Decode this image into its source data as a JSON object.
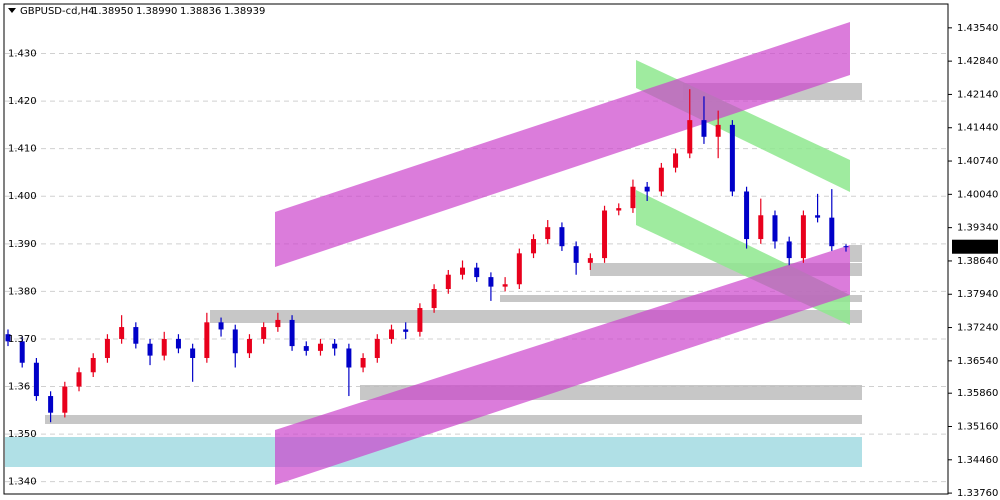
{
  "chart_data": {
    "type": "candlestick",
    "header": {
      "symbol": "GBPUSD-cd,H4",
      "open": "1.38950",
      "high": "1.38990",
      "low": "1.38836",
      "close": "1.38939"
    },
    "current_price": {
      "value": 1.38939,
      "label": "1.38939"
    },
    "up_color": "#e8001c",
    "down_color": "#0000c8",
    "grid": true,
    "ylim": [
      1.3372,
      1.4402
    ],
    "yticks": [
      {
        "value": 1.43,
        "label": "1.430"
      },
      {
        "value": 1.42,
        "label": "1.420"
      },
      {
        "value": 1.41,
        "label": "1.410"
      },
      {
        "value": 1.4,
        "label": "1.400"
      },
      {
        "value": 1.39,
        "label": "1.390"
      },
      {
        "value": 1.38,
        "label": "1.380"
      },
      {
        "value": 1.37,
        "label": "1.370"
      },
      {
        "value": 1.36,
        "label": "1.36"
      },
      {
        "value": 1.35,
        "label": "1.350"
      },
      {
        "value": 1.34,
        "label": "1.340"
      }
    ],
    "y2lim": [
      1.3372,
      1.4402
    ],
    "y2ticks": [
      {
        "value": 1.4354,
        "label": "1.43540"
      },
      {
        "value": 1.4284,
        "label": "1.42840"
      },
      {
        "value": 1.4214,
        "label": "1.42140"
      },
      {
        "value": 1.4144,
        "label": "1.41440"
      },
      {
        "value": 1.4074,
        "label": "1.40740"
      },
      {
        "value": 1.4004,
        "label": "1.40040"
      },
      {
        "value": 1.3934,
        "label": "1.39340"
      },
      {
        "value": 1.3864,
        "label": "1.38640"
      },
      {
        "value": 1.3794,
        "label": "1.37940"
      },
      {
        "value": 1.3724,
        "label": "1.37240"
      },
      {
        "value": 1.3654,
        "label": "1.36540"
      },
      {
        "value": 1.3586,
        "label": "1.35860"
      },
      {
        "value": 1.3516,
        "label": "1.35160"
      },
      {
        "value": 1.3446,
        "label": "1.34460"
      },
      {
        "value": 1.3376,
        "label": "1.33760"
      }
    ],
    "open": [
      1.371,
      1.3695,
      1.365,
      1.358,
      1.3545,
      1.36,
      1.363,
      1.366,
      1.37,
      1.3725,
      1.369,
      1.3665,
      1.37,
      1.368,
      1.366,
      1.3735,
      1.372,
      1.367,
      1.37,
      1.3725,
      1.374,
      1.3685,
      1.3675,
      1.369,
      1.368,
      1.364,
      1.366,
      1.37,
      1.372,
      1.3715,
      1.3765,
      1.3805,
      1.3835,
      1.385,
      1.383,
      1.381,
      1.3815,
      1.388,
      1.391,
      1.3935,
      1.3895,
      1.386,
      1.387,
      1.397,
      1.3975,
      1.402,
      1.401,
      1.406,
      1.409,
      1.416,
      1.4125,
      1.415,
      1.401,
      1.391,
      1.396,
      1.3905,
      1.387,
      1.396,
      1.3955,
      1.3895
    ],
    "high": [
      1.372,
      1.3705,
      1.366,
      1.359,
      1.361,
      1.364,
      1.367,
      1.371,
      1.375,
      1.3735,
      1.37,
      1.3715,
      1.371,
      1.369,
      1.3755,
      1.3745,
      1.373,
      1.371,
      1.3735,
      1.3755,
      1.375,
      1.3695,
      1.37,
      1.37,
      1.369,
      1.367,
      1.371,
      1.373,
      1.3735,
      1.3775,
      1.3815,
      1.3845,
      1.3865,
      1.386,
      1.384,
      1.383,
      1.389,
      1.392,
      1.395,
      1.3945,
      1.3905,
      1.388,
      1.398,
      1.3985,
      1.4035,
      1.403,
      1.407,
      1.41,
      1.4225,
      1.421,
      1.418,
      1.416,
      1.402,
      1.3995,
      1.397,
      1.3915,
      1.397,
      1.4005,
      1.4015,
      1.3899
    ],
    "low": [
      1.3685,
      1.364,
      1.357,
      1.3525,
      1.3535,
      1.359,
      1.362,
      1.365,
      1.369,
      1.368,
      1.3645,
      1.3655,
      1.367,
      1.361,
      1.365,
      1.3705,
      1.364,
      1.366,
      1.369,
      1.3715,
      1.3675,
      1.3665,
      1.3665,
      1.3665,
      1.358,
      1.363,
      1.365,
      1.369,
      1.37,
      1.3705,
      1.3755,
      1.3795,
      1.3825,
      1.382,
      1.378,
      1.38,
      1.3805,
      1.387,
      1.39,
      1.3885,
      1.3835,
      1.3845,
      1.386,
      1.396,
      1.3965,
      1.399,
      1.4,
      1.405,
      1.408,
      1.411,
      1.408,
      1.4,
      1.389,
      1.39,
      1.389,
      1.3855,
      1.386,
      1.3945,
      1.3885,
      1.38836
    ],
    "close": [
      1.3695,
      1.365,
      1.358,
      1.3545,
      1.36,
      1.363,
      1.366,
      1.37,
      1.3725,
      1.369,
      1.3665,
      1.37,
      1.368,
      1.366,
      1.3735,
      1.372,
      1.367,
      1.37,
      1.3725,
      1.374,
      1.3685,
      1.3675,
      1.369,
      1.368,
      1.364,
      1.366,
      1.37,
      1.372,
      1.3715,
      1.3765,
      1.3805,
      1.3835,
      1.385,
      1.383,
      1.381,
      1.3815,
      1.388,
      1.391,
      1.3935,
      1.3895,
      1.386,
      1.387,
      1.397,
      1.3975,
      1.402,
      1.401,
      1.406,
      1.409,
      1.416,
      1.4125,
      1.415,
      1.401,
      1.391,
      1.396,
      1.3905,
      1.387,
      1.396,
      1.3955,
      1.3895,
      1.38939
    ]
  }
}
